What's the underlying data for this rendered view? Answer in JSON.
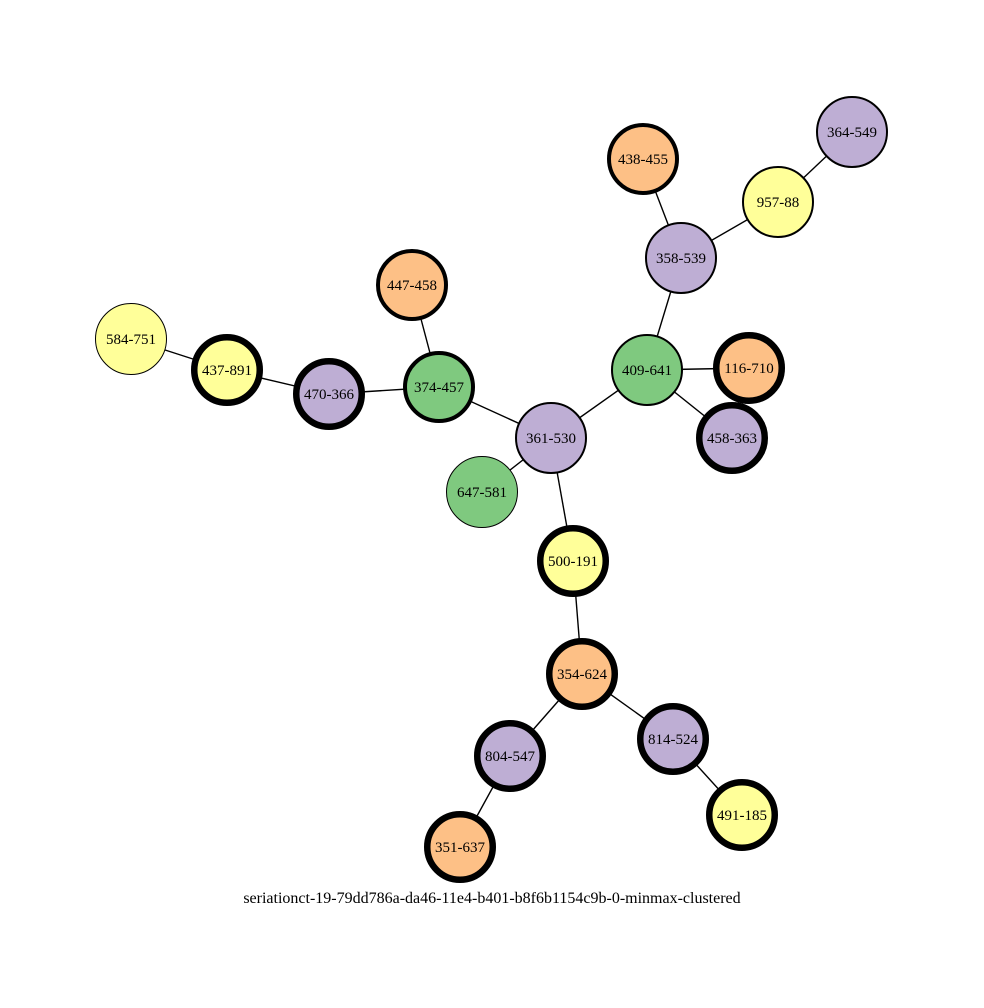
{
  "colors": {
    "orange": "#fdc086",
    "purple": "#beaed4",
    "yellow": "#ffff99",
    "green": "#7fc97f",
    "stroke": "#000000"
  },
  "caption": "seriationct-19-79dd786a-da46-11e4-b401-b8f6b1154c9b-0-minmax-clustered",
  "nodes": [
    {
      "id": "364-549",
      "label": "364-549",
      "color": "purple",
      "weight": "thin"
    },
    {
      "id": "957-88",
      "label": "957-88",
      "color": "yellow",
      "weight": "thin"
    },
    {
      "id": "438-455",
      "label": "438-455",
      "color": "orange",
      "weight": "medium"
    },
    {
      "id": "358-539",
      "label": "358-539",
      "color": "purple",
      "weight": "thin"
    },
    {
      "id": "447-458",
      "label": "447-458",
      "color": "orange",
      "weight": "medium"
    },
    {
      "id": "584-751",
      "label": "584-751",
      "color": "yellow",
      "weight": "hairline"
    },
    {
      "id": "437-891",
      "label": "437-891",
      "color": "yellow",
      "weight": "heavy"
    },
    {
      "id": "470-366",
      "label": "470-366",
      "color": "purple",
      "weight": "heavy"
    },
    {
      "id": "374-457",
      "label": "374-457",
      "color": "green",
      "weight": "medium"
    },
    {
      "id": "409-641",
      "label": "409-641",
      "color": "green",
      "weight": "thin"
    },
    {
      "id": "116-710",
      "label": "116-710",
      "color": "orange",
      "weight": "heavy"
    },
    {
      "id": "361-530",
      "label": "361-530",
      "color": "purple",
      "weight": "thin"
    },
    {
      "id": "458-363",
      "label": "458-363",
      "color": "purple",
      "weight": "heavy"
    },
    {
      "id": "647-581",
      "label": "647-581",
      "color": "green",
      "weight": "hairline"
    },
    {
      "id": "500-191",
      "label": "500-191",
      "color": "yellow",
      "weight": "heavy"
    },
    {
      "id": "354-624",
      "label": "354-624",
      "color": "orange",
      "weight": "heavy"
    },
    {
      "id": "814-524",
      "label": "814-524",
      "color": "purple",
      "weight": "heavy"
    },
    {
      "id": "804-547",
      "label": "804-547",
      "color": "purple",
      "weight": "heavy"
    },
    {
      "id": "491-185",
      "label": "491-185",
      "color": "yellow",
      "weight": "heavy"
    },
    {
      "id": "351-637",
      "label": "351-637",
      "color": "orange",
      "weight": "heavy"
    }
  ],
  "edges": [
    [
      "364-549",
      "957-88"
    ],
    [
      "957-88",
      "358-539"
    ],
    [
      "438-455",
      "358-539"
    ],
    [
      "358-539",
      "409-641"
    ],
    [
      "409-641",
      "116-710"
    ],
    [
      "409-641",
      "458-363"
    ],
    [
      "409-641",
      "361-530"
    ],
    [
      "374-457",
      "361-530"
    ],
    [
      "447-458",
      "374-457"
    ],
    [
      "470-366",
      "374-457"
    ],
    [
      "437-891",
      "470-366"
    ],
    [
      "584-751",
      "437-891"
    ],
    [
      "361-530",
      "647-581"
    ],
    [
      "361-530",
      "500-191"
    ],
    [
      "500-191",
      "354-624"
    ],
    [
      "354-624",
      "814-524"
    ],
    [
      "354-624",
      "804-547"
    ],
    [
      "814-524",
      "491-185"
    ],
    [
      "804-547",
      "351-637"
    ]
  ]
}
